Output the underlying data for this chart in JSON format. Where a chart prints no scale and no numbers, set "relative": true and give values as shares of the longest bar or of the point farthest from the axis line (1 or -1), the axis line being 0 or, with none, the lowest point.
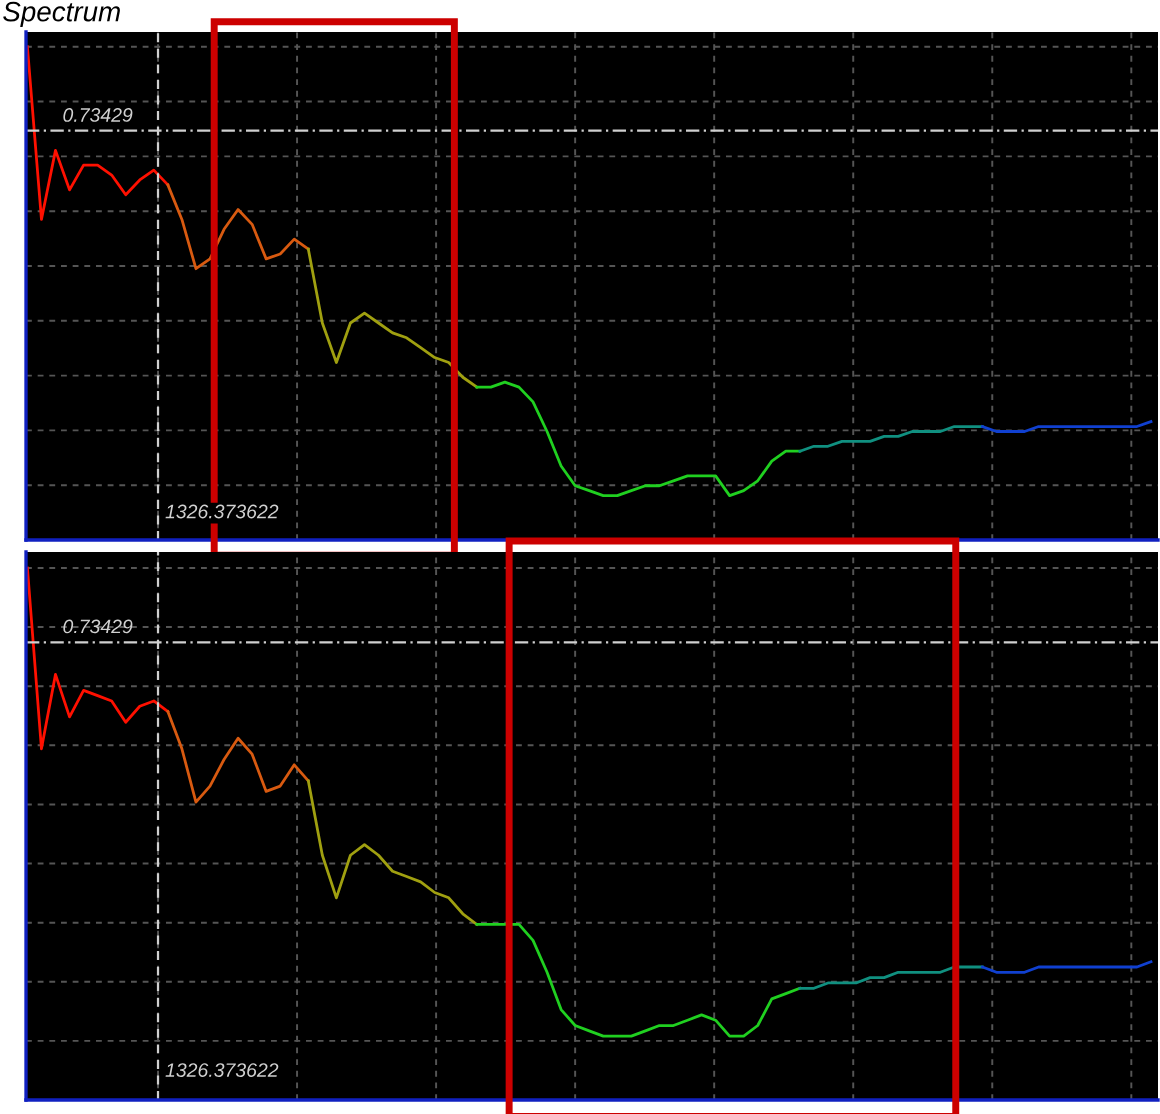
{
  "chart_data": [
    {
      "type": "line",
      "title": "Spectrum",
      "relative": true,
      "grid": true,
      "categories": [
        null,
        null,
        null,
        null,
        null,
        null,
        null,
        null,
        null,
        null,
        null,
        null,
        null,
        null,
        null,
        null,
        null,
        null,
        null,
        null,
        null,
        null,
        null,
        null,
        null,
        null,
        null,
        null,
        null,
        null,
        null,
        null,
        null,
        null,
        null,
        null,
        null,
        null,
        null,
        null,
        null,
        null,
        null,
        null,
        null,
        null,
        null,
        null,
        null,
        null,
        null,
        null,
        null,
        null,
        null,
        null,
        null,
        null,
        null,
        null,
        null,
        null,
        null,
        null,
        null,
        null,
        null,
        null,
        null,
        null,
        null,
        null,
        null,
        null,
        null,
        null,
        null,
        null,
        null,
        null,
        null
      ],
      "series": [
        {
          "color": "#ff1000",
          "values": [
            1.0,
            0.65,
            0.79,
            0.71,
            0.76,
            0.76,
            0.74,
            0.7,
            0.73,
            0.75,
            0.72,
            null,
            null,
            null,
            null,
            null,
            null,
            null,
            null,
            null,
            null,
            null,
            null,
            null,
            null,
            null,
            null,
            null,
            null,
            null,
            null,
            null,
            null,
            null,
            null,
            null,
            null,
            null,
            null,
            null,
            null,
            null,
            null,
            null,
            null,
            null,
            null,
            null,
            null,
            null,
            null,
            null,
            null,
            null,
            null,
            null,
            null,
            null,
            null,
            null,
            null,
            null,
            null,
            null,
            null,
            null,
            null,
            null,
            null,
            null,
            null,
            null,
            null,
            null,
            null,
            null,
            null,
            null,
            null,
            null,
            null
          ]
        },
        {
          "color": "#d85a10",
          "values": [
            null,
            null,
            null,
            null,
            null,
            null,
            null,
            null,
            null,
            null,
            0.72,
            0.65,
            0.55,
            0.57,
            0.63,
            0.67,
            0.64,
            0.57,
            0.58,
            0.61,
            0.59,
            null,
            null,
            null,
            null,
            null,
            null,
            null,
            null,
            null,
            null,
            null,
            null,
            null,
            null,
            null,
            null,
            null,
            null,
            null,
            null,
            null,
            null,
            null,
            null,
            null,
            null,
            null,
            null,
            null,
            null,
            null,
            null,
            null,
            null,
            null,
            null,
            null,
            null,
            null,
            null,
            null,
            null,
            null,
            null,
            null,
            null,
            null,
            null,
            null,
            null,
            null,
            null,
            null,
            null,
            null,
            null,
            null,
            null,
            null,
            null
          ]
        },
        {
          "color": "#a0a010",
          "values": [
            null,
            null,
            null,
            null,
            null,
            null,
            null,
            null,
            null,
            null,
            null,
            null,
            null,
            null,
            null,
            null,
            null,
            null,
            null,
            null,
            0.59,
            0.44,
            0.36,
            0.44,
            0.46,
            0.44,
            0.42,
            0.41,
            0.39,
            0.37,
            0.36,
            0.33,
            0.31,
            null,
            null,
            null,
            null,
            null,
            null,
            null,
            null,
            null,
            null,
            null,
            null,
            null,
            null,
            null,
            null,
            null,
            null,
            null,
            null,
            null,
            null,
            null,
            null,
            null,
            null,
            null,
            null,
            null,
            null,
            null,
            null,
            null,
            null,
            null,
            null,
            null,
            null,
            null,
            null,
            null,
            null,
            null,
            null,
            null,
            null,
            null,
            null
          ]
        },
        {
          "color": "#20d020",
          "values": [
            null,
            null,
            null,
            null,
            null,
            null,
            null,
            null,
            null,
            null,
            null,
            null,
            null,
            null,
            null,
            null,
            null,
            null,
            null,
            null,
            null,
            null,
            null,
            null,
            null,
            null,
            null,
            null,
            null,
            null,
            null,
            null,
            0.31,
            0.31,
            0.32,
            0.31,
            0.28,
            0.22,
            0.15,
            0.11,
            0.1,
            0.09,
            0.09,
            0.1,
            0.11,
            0.11,
            0.12,
            0.13,
            0.13,
            0.13,
            0.09,
            0.1,
            0.12,
            0.16,
            0.18,
            0.18,
            null,
            null,
            null,
            null,
            null,
            null,
            null,
            null,
            null,
            null,
            null,
            null,
            null,
            null,
            null,
            null,
            null,
            null,
            null,
            null,
            null,
            null,
            null,
            null,
            null
          ]
        },
        {
          "color": "#109080",
          "values": [
            null,
            null,
            null,
            null,
            null,
            null,
            null,
            null,
            null,
            null,
            null,
            null,
            null,
            null,
            null,
            null,
            null,
            null,
            null,
            null,
            null,
            null,
            null,
            null,
            null,
            null,
            null,
            null,
            null,
            null,
            null,
            null,
            null,
            null,
            null,
            null,
            null,
            null,
            null,
            null,
            null,
            null,
            null,
            null,
            null,
            null,
            null,
            null,
            null,
            null,
            null,
            null,
            null,
            null,
            null,
            0.18,
            0.19,
            0.19,
            0.2,
            0.2,
            0.2,
            0.21,
            0.21,
            0.22,
            0.22,
            0.22,
            0.23,
            0.23,
            0.23,
            null,
            null,
            null,
            null,
            null,
            null,
            null,
            null,
            null,
            null,
            null,
            null
          ]
        },
        {
          "color": "#1040d0",
          "values": [
            null,
            null,
            null,
            null,
            null,
            null,
            null,
            null,
            null,
            null,
            null,
            null,
            null,
            null,
            null,
            null,
            null,
            null,
            null,
            null,
            null,
            null,
            null,
            null,
            null,
            null,
            null,
            null,
            null,
            null,
            null,
            null,
            null,
            null,
            null,
            null,
            null,
            null,
            null,
            null,
            null,
            null,
            null,
            null,
            null,
            null,
            null,
            null,
            null,
            null,
            null,
            null,
            null,
            null,
            null,
            null,
            null,
            null,
            null,
            null,
            null,
            null,
            null,
            null,
            null,
            null,
            null,
            null,
            0.23,
            0.22,
            0.22,
            0.22,
            0.23,
            0.23,
            0.23,
            0.23,
            0.23,
            0.23,
            0.23,
            0.23,
            0.24
          ]
        }
      ],
      "ref_lines": [
        {
          "axis": "y",
          "value": 0.83,
          "color": "#d0d0d0",
          "line_style": "dashdot"
        }
      ],
      "annotations": [
        "0.73429",
        "1326.373622"
      ]
    },
    {
      "type": "line",
      "relative": true,
      "grid": true,
      "categories": [
        null,
        null,
        null,
        null,
        null,
        null,
        null,
        null,
        null,
        null,
        null,
        null,
        null,
        null,
        null,
        null,
        null,
        null,
        null,
        null,
        null,
        null,
        null,
        null,
        null,
        null,
        null,
        null,
        null,
        null,
        null,
        null,
        null,
        null,
        null,
        null,
        null,
        null,
        null,
        null,
        null,
        null,
        null,
        null,
        null,
        null,
        null,
        null,
        null,
        null,
        null,
        null,
        null,
        null,
        null,
        null,
        null,
        null,
        null,
        null,
        null,
        null,
        null,
        null,
        null,
        null,
        null,
        null,
        null,
        null,
        null,
        null,
        null,
        null,
        null,
        null,
        null,
        null,
        null,
        null,
        null
      ],
      "series": [
        {
          "color": "#ff1000",
          "values": [
            1.0,
            0.66,
            0.8,
            0.72,
            0.77,
            0.76,
            0.75,
            0.71,
            0.74,
            0.75,
            0.73,
            null,
            null,
            null,
            null,
            null,
            null,
            null,
            null,
            null,
            null,
            null,
            null,
            null,
            null,
            null,
            null,
            null,
            null,
            null,
            null,
            null,
            null,
            null,
            null,
            null,
            null,
            null,
            null,
            null,
            null,
            null,
            null,
            null,
            null,
            null,
            null,
            null,
            null,
            null,
            null,
            null,
            null,
            null,
            null,
            null,
            null,
            null,
            null,
            null,
            null,
            null,
            null,
            null,
            null,
            null,
            null,
            null,
            null,
            null,
            null,
            null,
            null,
            null,
            null,
            null,
            null,
            null,
            null,
            null,
            null
          ]
        },
        {
          "color": "#d85a10",
          "values": [
            null,
            null,
            null,
            null,
            null,
            null,
            null,
            null,
            null,
            null,
            0.73,
            0.66,
            0.56,
            0.59,
            0.64,
            0.68,
            0.65,
            0.58,
            0.59,
            0.63,
            0.6,
            null,
            null,
            null,
            null,
            null,
            null,
            null,
            null,
            null,
            null,
            null,
            null,
            null,
            null,
            null,
            null,
            null,
            null,
            null,
            null,
            null,
            null,
            null,
            null,
            null,
            null,
            null,
            null,
            null,
            null,
            null,
            null,
            null,
            null,
            null,
            null,
            null,
            null,
            null,
            null,
            null,
            null,
            null,
            null,
            null,
            null,
            null,
            null,
            null,
            null,
            null,
            null,
            null,
            null,
            null,
            null,
            null,
            null,
            null,
            null
          ]
        },
        {
          "color": "#a0a010",
          "values": [
            null,
            null,
            null,
            null,
            null,
            null,
            null,
            null,
            null,
            null,
            null,
            null,
            null,
            null,
            null,
            null,
            null,
            null,
            null,
            null,
            0.6,
            0.46,
            0.38,
            0.46,
            0.48,
            0.46,
            0.43,
            0.42,
            0.41,
            0.39,
            0.38,
            0.35,
            0.33,
            null,
            null,
            null,
            null,
            null,
            null,
            null,
            null,
            null,
            null,
            null,
            null,
            null,
            null,
            null,
            null,
            null,
            null,
            null,
            null,
            null,
            null,
            null,
            null,
            null,
            null,
            null,
            null,
            null,
            null,
            null,
            null,
            null,
            null,
            null,
            null,
            null,
            null,
            null,
            null,
            null,
            null,
            null,
            null,
            null,
            null,
            null,
            null
          ]
        },
        {
          "color": "#20d020",
          "values": [
            null,
            null,
            null,
            null,
            null,
            null,
            null,
            null,
            null,
            null,
            null,
            null,
            null,
            null,
            null,
            null,
            null,
            null,
            null,
            null,
            null,
            null,
            null,
            null,
            null,
            null,
            null,
            null,
            null,
            null,
            null,
            null,
            0.33,
            0.33,
            0.33,
            0.33,
            0.3,
            0.24,
            0.17,
            0.14,
            0.13,
            0.12,
            0.12,
            0.12,
            0.13,
            0.14,
            0.14,
            0.15,
            0.16,
            0.15,
            0.12,
            0.12,
            0.14,
            0.19,
            0.2,
            0.21,
            null,
            null,
            null,
            null,
            null,
            null,
            null,
            null,
            null,
            null,
            null,
            null,
            null,
            null,
            null,
            null,
            null,
            null,
            null,
            null,
            null,
            null,
            null,
            null,
            null
          ]
        },
        {
          "color": "#109080",
          "values": [
            null,
            null,
            null,
            null,
            null,
            null,
            null,
            null,
            null,
            null,
            null,
            null,
            null,
            null,
            null,
            null,
            null,
            null,
            null,
            null,
            null,
            null,
            null,
            null,
            null,
            null,
            null,
            null,
            null,
            null,
            null,
            null,
            null,
            null,
            null,
            null,
            null,
            null,
            null,
            null,
            null,
            null,
            null,
            null,
            null,
            null,
            null,
            null,
            null,
            null,
            null,
            null,
            null,
            null,
            null,
            0.21,
            0.21,
            0.22,
            0.22,
            0.22,
            0.23,
            0.23,
            0.24,
            0.24,
            0.24,
            0.24,
            0.25,
            0.25,
            0.25,
            null,
            null,
            null,
            null,
            null,
            null,
            null,
            null,
            null,
            null,
            null,
            null
          ]
        },
        {
          "color": "#1040d0",
          "values": [
            null,
            null,
            null,
            null,
            null,
            null,
            null,
            null,
            null,
            null,
            null,
            null,
            null,
            null,
            null,
            null,
            null,
            null,
            null,
            null,
            null,
            null,
            null,
            null,
            null,
            null,
            null,
            null,
            null,
            null,
            null,
            null,
            null,
            null,
            null,
            null,
            null,
            null,
            null,
            null,
            null,
            null,
            null,
            null,
            null,
            null,
            null,
            null,
            null,
            null,
            null,
            null,
            null,
            null,
            null,
            null,
            null,
            null,
            null,
            null,
            null,
            null,
            null,
            null,
            null,
            null,
            null,
            null,
            0.25,
            0.24,
            0.24,
            0.24,
            0.25,
            0.25,
            0.25,
            0.25,
            0.25,
            0.25,
            0.25,
            0.25,
            0.26
          ]
        }
      ],
      "ref_lines": [
        {
          "axis": "y",
          "value": 0.86,
          "color": "#d0d0d0",
          "line_style": "dashdot"
        }
      ],
      "annotations": [
        "0.73429",
        "1326.373622"
      ]
    }
  ]
}
